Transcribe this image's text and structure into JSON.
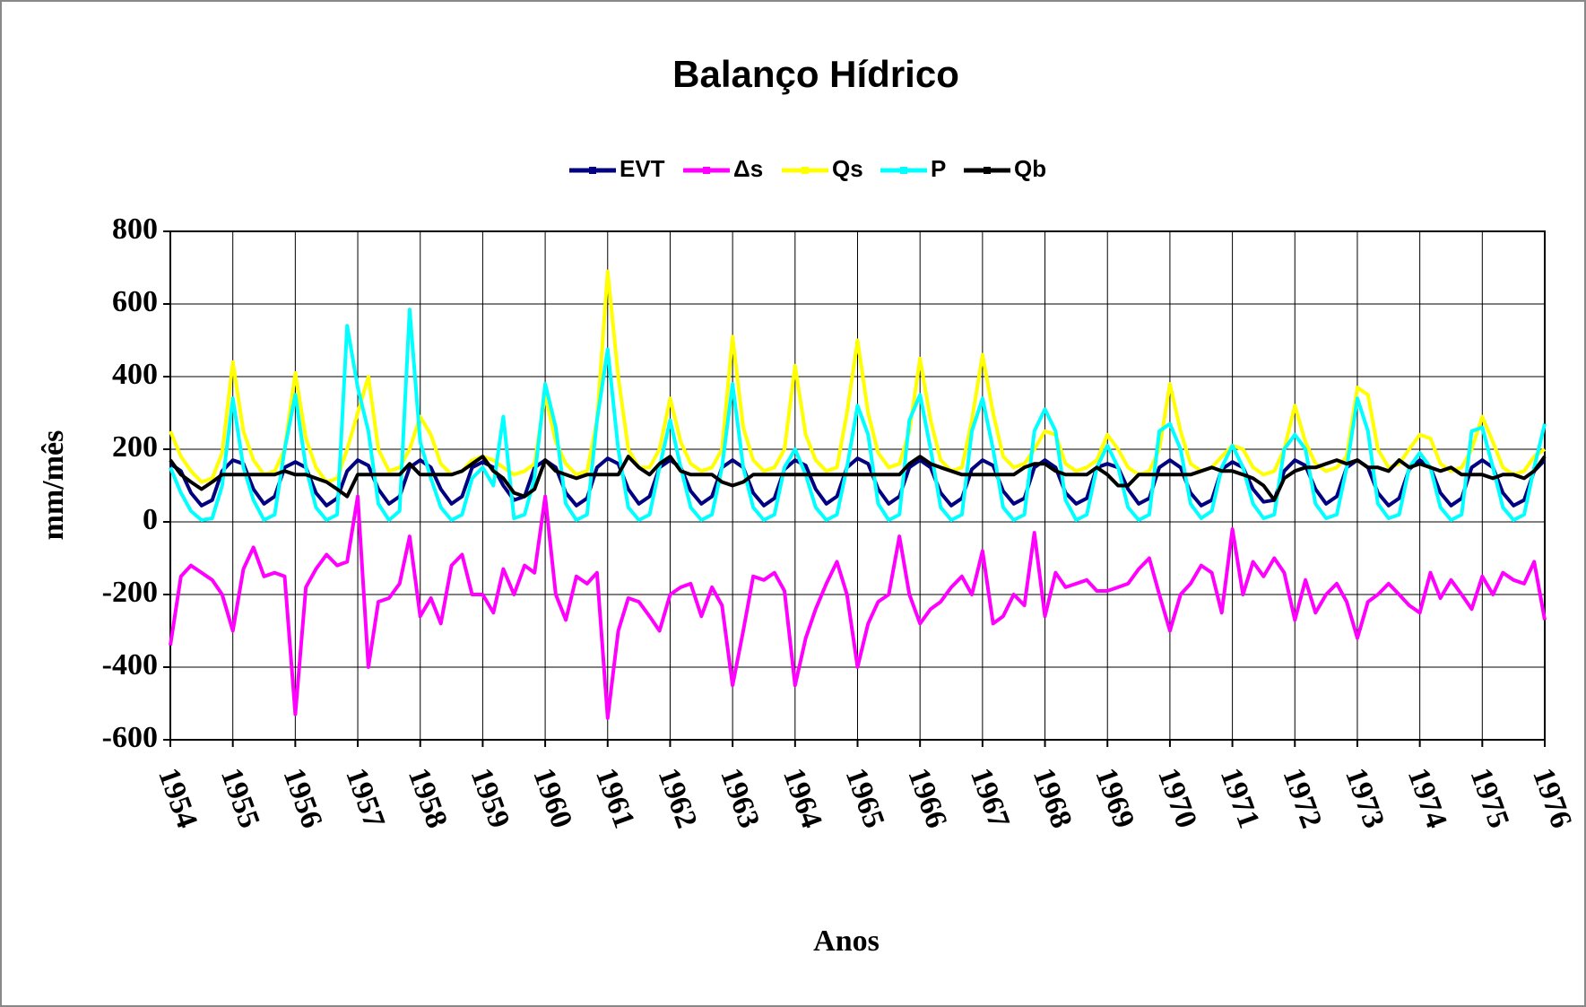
{
  "chart_data": {
    "type": "line",
    "title": "Balanço Hídrico",
    "xlabel": "Anos",
    "ylabel": "mm/mês",
    "xlim": [
      1954,
      1976
    ],
    "xticks": [
      1954,
      1955,
      1956,
      1957,
      1958,
      1959,
      1960,
      1961,
      1962,
      1963,
      1964,
      1965,
      1966,
      1967,
      1968,
      1969,
      1970,
      1971,
      1972,
      1973,
      1974,
      1975,
      1976
    ],
    "ylim": [
      -600,
      800
    ],
    "yticks": [
      -600,
      -400,
      -200,
      0,
      200,
      400,
      600,
      800
    ],
    "grid": true,
    "legend": "top",
    "x": [
      1954,
      1954.17,
      1954.33,
      1954.5,
      1954.67,
      1954.83,
      1955,
      1955.17,
      1955.33,
      1955.5,
      1955.67,
      1955.83,
      1956,
      1956.17,
      1956.33,
      1956.5,
      1956.67,
      1956.83,
      1957,
      1957.17,
      1957.33,
      1957.5,
      1957.67,
      1957.83,
      1958,
      1958.17,
      1958.33,
      1958.5,
      1958.67,
      1958.83,
      1959,
      1959.17,
      1959.33,
      1959.5,
      1959.67,
      1959.83,
      1960,
      1960.17,
      1960.33,
      1960.5,
      1960.67,
      1960.83,
      1961,
      1961.17,
      1961.33,
      1961.5,
      1961.67,
      1961.83,
      1962,
      1962.17,
      1962.33,
      1962.5,
      1962.67,
      1962.83,
      1963,
      1963.17,
      1963.33,
      1963.5,
      1963.67,
      1963.83,
      1964,
      1964.17,
      1964.33,
      1964.5,
      1964.67,
      1964.83,
      1965,
      1965.17,
      1965.33,
      1965.5,
      1965.67,
      1965.83,
      1966,
      1966.17,
      1966.33,
      1966.5,
      1966.67,
      1966.83,
      1967,
      1967.17,
      1967.33,
      1967.5,
      1967.67,
      1967.83,
      1968,
      1968.17,
      1968.33,
      1968.5,
      1968.67,
      1968.83,
      1969,
      1969.17,
      1969.33,
      1969.5,
      1969.67,
      1969.83,
      1970,
      1970.17,
      1970.33,
      1970.5,
      1970.67,
      1970.83,
      1971,
      1971.17,
      1971.33,
      1971.5,
      1971.67,
      1971.83,
      1972,
      1972.17,
      1972.33,
      1972.5,
      1972.67,
      1972.83,
      1973,
      1973.17,
      1973.33,
      1973.5,
      1973.67,
      1973.83,
      1974,
      1974.17,
      1974.33,
      1974.5,
      1974.67,
      1974.83,
      1975,
      1975.17,
      1975.33,
      1975.5,
      1975.67,
      1975.83,
      1976
    ],
    "series": [
      {
        "name": "EVT",
        "color": "#000080",
        "values": [
          160,
          140,
          80,
          45,
          60,
          140,
          170,
          160,
          90,
          50,
          70,
          150,
          165,
          150,
          80,
          45,
          65,
          140,
          170,
          155,
          90,
          50,
          70,
          150,
          170,
          150,
          90,
          50,
          70,
          150,
          165,
          150,
          100,
          60,
          70,
          150,
          170,
          150,
          80,
          45,
          65,
          150,
          175,
          160,
          90,
          50,
          70,
          150,
          170,
          150,
          85,
          50,
          70,
          150,
          170,
          150,
          80,
          45,
          65,
          145,
          170,
          155,
          90,
          50,
          70,
          150,
          175,
          160,
          90,
          50,
          70,
          150,
          170,
          150,
          80,
          45,
          65,
          145,
          170,
          155,
          85,
          50,
          65,
          150,
          170,
          150,
          80,
          50,
          65,
          150,
          160,
          150,
          90,
          50,
          65,
          150,
          170,
          150,
          80,
          45,
          60,
          145,
          165,
          150,
          90,
          55,
          60,
          140,
          170,
          155,
          90,
          50,
          70,
          150,
          170,
          150,
          80,
          45,
          65,
          145,
          170,
          150,
          80,
          45,
          65,
          150,
          170,
          150,
          80,
          45,
          60,
          140,
          170
        ]
      },
      {
        "name": "Δs",
        "color": "#ff00ff",
        "values": [
          -340,
          -150,
          -120,
          -140,
          -160,
          -200,
          -300,
          -130,
          -70,
          -150,
          -140,
          -150,
          -530,
          -180,
          -130,
          -90,
          -120,
          -110,
          70,
          -400,
          -220,
          -210,
          -170,
          -40,
          -260,
          -210,
          -280,
          -120,
          -90,
          -200,
          -200,
          -250,
          -130,
          -200,
          -120,
          -140,
          70,
          -200,
          -270,
          -150,
          -170,
          -140,
          -540,
          -300,
          -210,
          -220,
          -260,
          -300,
          -200,
          -180,
          -170,
          -260,
          -180,
          -230,
          -450,
          -300,
          -150,
          -160,
          -140,
          -190,
          -450,
          -320,
          -240,
          -170,
          -110,
          -200,
          -400,
          -280,
          -220,
          -200,
          -40,
          -200,
          -280,
          -240,
          -220,
          -180,
          -150,
          -200,
          -80,
          -280,
          -260,
          -200,
          -230,
          -30,
          -260,
          -140,
          -180,
          -170,
          -160,
          -190,
          -190,
          -180,
          -170,
          -130,
          -100,
          -200,
          -300,
          -200,
          -170,
          -120,
          -140,
          -250,
          -20,
          -200,
          -110,
          -150,
          -100,
          -140,
          -270,
          -160,
          -250,
          -200,
          -170,
          -220,
          -320,
          -220,
          -200,
          -170,
          -200,
          -230,
          -250,
          -140,
          -210,
          -160,
          -200,
          -240,
          -150,
          -200,
          -140,
          -160,
          -170,
          -110,
          -270
        ]
      },
      {
        "name": "Qs",
        "color": "#ffff00",
        "values": [
          250,
          180,
          140,
          110,
          120,
          190,
          440,
          250,
          170,
          130,
          140,
          200,
          410,
          230,
          150,
          110,
          120,
          200,
          300,
          400,
          200,
          140,
          150,
          200,
          290,
          240,
          160,
          130,
          140,
          170,
          180,
          170,
          150,
          130,
          140,
          160,
          350,
          220,
          160,
          130,
          140,
          280,
          690,
          400,
          200,
          150,
          150,
          200,
          340,
          220,
          160,
          140,
          150,
          200,
          510,
          260,
          170,
          140,
          150,
          200,
          430,
          240,
          170,
          140,
          150,
          300,
          500,
          300,
          190,
          150,
          160,
          250,
          450,
          280,
          170,
          140,
          150,
          280,
          460,
          300,
          180,
          150,
          160,
          200,
          250,
          240,
          160,
          140,
          150,
          170,
          240,
          200,
          150,
          130,
          140,
          200,
          380,
          250,
          160,
          140,
          150,
          180,
          210,
          200,
          150,
          130,
          140,
          200,
          320,
          220,
          160,
          140,
          150,
          180,
          370,
          350,
          200,
          150,
          160,
          200,
          240,
          230,
          160,
          140,
          150,
          200,
          290,
          220,
          150,
          130,
          140,
          180,
          200
        ]
      },
      {
        "name": "P",
        "color": "#00ffff",
        "values": [
          150,
          80,
          30,
          5,
          10,
          100,
          340,
          150,
          60,
          5,
          20,
          200,
          350,
          150,
          40,
          5,
          20,
          540,
          370,
          250,
          50,
          5,
          30,
          585,
          220,
          120,
          40,
          5,
          20,
          120,
          150,
          100,
          290,
          10,
          20,
          120,
          380,
          260,
          50,
          5,
          20,
          280,
          475,
          200,
          40,
          5,
          20,
          150,
          280,
          150,
          40,
          5,
          20,
          150,
          380,
          150,
          40,
          5,
          20,
          150,
          200,
          130,
          40,
          5,
          20,
          150,
          320,
          240,
          50,
          5,
          20,
          280,
          350,
          200,
          40,
          5,
          20,
          250,
          340,
          200,
          40,
          5,
          20,
          250,
          310,
          250,
          60,
          5,
          20,
          150,
          210,
          150,
          40,
          5,
          20,
          250,
          270,
          200,
          50,
          10,
          30,
          150,
          210,
          150,
          50,
          10,
          20,
          200,
          240,
          200,
          50,
          10,
          20,
          150,
          340,
          250,
          50,
          10,
          20,
          150,
          190,
          150,
          40,
          5,
          20,
          250,
          260,
          150,
          40,
          5,
          20,
          150,
          270
        ]
      },
      {
        "name": "Qb",
        "color": "#000000",
        "values": [
          170,
          130,
          110,
          90,
          110,
          130,
          130,
          130,
          130,
          130,
          130,
          140,
          130,
          130,
          120,
          110,
          90,
          70,
          130,
          130,
          130,
          130,
          130,
          160,
          130,
          130,
          130,
          130,
          140,
          160,
          180,
          140,
          120,
          80,
          70,
          90,
          170,
          140,
          130,
          120,
          130,
          130,
          130,
          130,
          180,
          150,
          130,
          160,
          180,
          140,
          130,
          130,
          130,
          110,
          100,
          110,
          130,
          130,
          130,
          130,
          130,
          130,
          130,
          130,
          130,
          130,
          130,
          130,
          130,
          130,
          130,
          160,
          180,
          160,
          150,
          140,
          130,
          130,
          130,
          130,
          130,
          130,
          150,
          160,
          160,
          140,
          130,
          130,
          130,
          150,
          130,
          100,
          100,
          130,
          130,
          130,
          130,
          130,
          130,
          140,
          150,
          140,
          140,
          130,
          120,
          100,
          60,
          120,
          140,
          150,
          150,
          160,
          170,
          160,
          170,
          150,
          150,
          140,
          170,
          150,
          160,
          150,
          140,
          150,
          130,
          130,
          130,
          120,
          130,
          130,
          120,
          140,
          180
        ]
      }
    ]
  }
}
